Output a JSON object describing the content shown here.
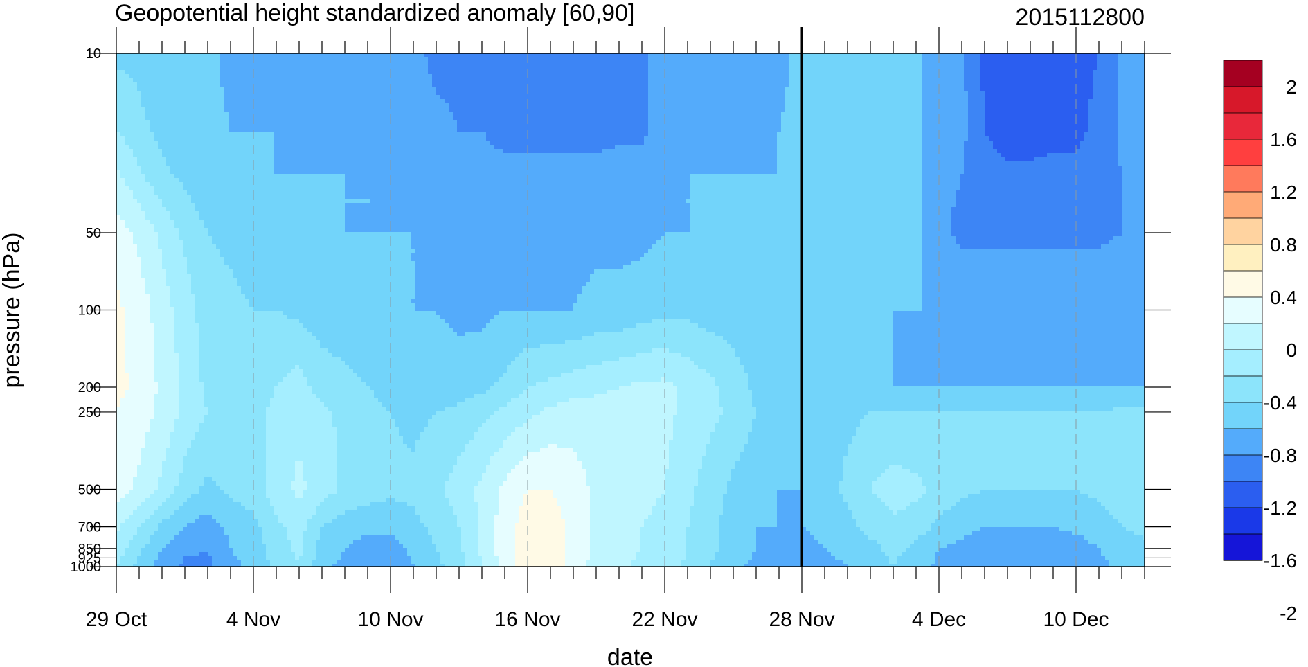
{
  "chart_data": {
    "type": "heatmap",
    "subtype": "filled-contour",
    "title": "Geopotential height standardized anomaly [60,90]",
    "right_label": "2015112800",
    "xlabel": "date",
    "ylabel": "pressure (hPa)",
    "x_ticks": [
      {
        "day": 0,
        "label": "29 Oct"
      },
      {
        "day": 6,
        "label": "4 Nov"
      },
      {
        "day": 12,
        "label": "10 Nov"
      },
      {
        "day": 18,
        "label": "16 Nov"
      },
      {
        "day": 24,
        "label": "22 Nov"
      },
      {
        "day": 30,
        "label": "28 Nov"
      },
      {
        "day": 36,
        "label": "4 Dec"
      },
      {
        "day": 42,
        "label": "10 Dec"
      }
    ],
    "x_range_days": [
      0,
      45
    ],
    "vertical_marker": "28 Nov",
    "y_ticks": [
      {
        "p": 10,
        "label": "10"
      },
      {
        "p": 50,
        "label": "50"
      },
      {
        "p": 100,
        "label": "100"
      },
      {
        "p": 200,
        "label": "200"
      },
      {
        "p": 250,
        "label": "250"
      },
      {
        "p": 500,
        "label": "500"
      },
      {
        "p": 700,
        "label": "700"
      },
      {
        "p": 850,
        "label": "850"
      },
      {
        "p": 925,
        "label": "925"
      },
      {
        "p": 1000,
        "label": "1000"
      }
    ],
    "y_range": [
      1000,
      10
    ],
    "y_scale": "log",
    "colorbar": {
      "labels": [
        "2",
        "1.6",
        "1.2",
        "0.8",
        "0.4",
        "0",
        "-0.4",
        "-0.8",
        "-1.2",
        "-1.6",
        "-2"
      ],
      "colors": [
        "#a50021",
        "#d7182a",
        "#e8283a",
        "#ff3f3f",
        "#ff7a5c",
        "#ffaa77",
        "#ffd3a0",
        "#fff0c0",
        "#fffae6",
        "#e6fdff",
        "#c0f6ff",
        "#a5eeff",
        "#8ce4fb",
        "#72d4fa",
        "#54abfb",
        "#3d85f5",
        "#2b5ef0",
        "#1a39e8",
        "#1515d8"
      ]
    },
    "levels": [
      {
        "p": 10,
        "values": [
          -0.45,
          -0.45,
          -0.55,
          -0.55,
          -0.55,
          -0.65,
          -0.65,
          -0.65,
          -0.65,
          -0.65,
          -0.65,
          -0.65,
          -0.65,
          -0.75,
          -0.85,
          -0.85,
          -0.9,
          -0.9,
          -0.9,
          -0.9,
          -0.85,
          -0.85,
          -0.85,
          -0.85,
          -0.7,
          -0.65,
          -0.65,
          -0.65,
          -0.65,
          -0.65,
          -0.55,
          -0.55,
          -0.55,
          -0.55,
          -0.55,
          -0.55,
          -0.7,
          -0.75,
          -1.05,
          -1.1,
          -1.1,
          -1.1,
          -1.05,
          -1.0,
          -0.75,
          -0.7
        ]
      },
      {
        "p": 20,
        "values": [
          -0.2,
          -0.35,
          -0.45,
          -0.55,
          -0.55,
          -0.6,
          -0.6,
          -0.6,
          -0.6,
          -0.6,
          -0.65,
          -0.65,
          -0.65,
          -0.7,
          -0.75,
          -0.8,
          -0.8,
          -0.85,
          -0.85,
          -0.85,
          -0.85,
          -0.85,
          -0.85,
          -0.85,
          -0.7,
          -0.6,
          -0.6,
          -0.6,
          -0.6,
          -0.6,
          -0.55,
          -0.5,
          -0.5,
          -0.5,
          -0.5,
          -0.55,
          -0.7,
          -0.75,
          -1.0,
          -1.1,
          -1.1,
          -1.05,
          -1.05,
          -0.95,
          -0.75,
          -0.7
        ]
      },
      {
        "p": 30,
        "values": [
          0.05,
          -0.15,
          -0.35,
          -0.45,
          -0.55,
          -0.55,
          -0.55,
          -0.6,
          -0.6,
          -0.6,
          -0.6,
          -0.6,
          -0.65,
          -0.65,
          -0.7,
          -0.75,
          -0.75,
          -0.75,
          -0.75,
          -0.75,
          -0.75,
          -0.75,
          -0.7,
          -0.7,
          -0.65,
          -0.6,
          -0.6,
          -0.6,
          -0.6,
          -0.6,
          -0.55,
          -0.5,
          -0.45,
          -0.45,
          -0.45,
          -0.55,
          -0.75,
          -0.8,
          -0.9,
          -0.95,
          -0.95,
          -0.95,
          -0.95,
          -0.9,
          -0.8,
          -0.75
        ]
      },
      {
        "p": 50,
        "values": [
          0.3,
          0.15,
          -0.05,
          -0.25,
          -0.4,
          -0.45,
          -0.5,
          -0.5,
          -0.55,
          -0.55,
          -0.6,
          -0.6,
          -0.6,
          -0.6,
          -0.65,
          -0.65,
          -0.7,
          -0.7,
          -0.7,
          -0.7,
          -0.65,
          -0.65,
          -0.65,
          -0.65,
          -0.6,
          -0.6,
          -0.55,
          -0.55,
          -0.55,
          -0.55,
          -0.55,
          -0.5,
          -0.45,
          -0.45,
          -0.5,
          -0.55,
          -0.75,
          -0.85,
          -0.85,
          -0.85,
          -0.85,
          -0.85,
          -0.85,
          -0.85,
          -0.8,
          -0.75
        ]
      },
      {
        "p": 100,
        "values": [
          0.45,
          0.3,
          0.1,
          -0.1,
          -0.3,
          -0.35,
          -0.4,
          -0.4,
          -0.45,
          -0.5,
          -0.5,
          -0.55,
          -0.55,
          -0.6,
          -0.6,
          -0.65,
          -0.65,
          -0.6,
          -0.6,
          -0.6,
          -0.6,
          -0.55,
          -0.55,
          -0.5,
          -0.45,
          -0.45,
          -0.5,
          -0.5,
          -0.5,
          -0.55,
          -0.55,
          -0.55,
          -0.55,
          -0.55,
          -0.6,
          -0.6,
          -0.6,
          -0.6,
          -0.6,
          -0.6,
          -0.6,
          -0.6,
          -0.6,
          -0.6,
          -0.6,
          -0.6
        ]
      },
      {
        "p": 200,
        "values": [
          0.45,
          0.35,
          0.15,
          -0.05,
          -0.25,
          -0.3,
          -0.3,
          -0.2,
          -0.1,
          -0.3,
          -0.35,
          -0.4,
          -0.45,
          -0.5,
          -0.5,
          -0.5,
          -0.45,
          -0.35,
          -0.2,
          -0.15,
          -0.1,
          -0.05,
          0.0,
          0.05,
          0.05,
          -0.05,
          -0.15,
          -0.3,
          -0.45,
          -0.5,
          -0.55,
          -0.55,
          -0.6,
          -0.6,
          -0.6,
          -0.6,
          -0.6,
          -0.6,
          -0.6,
          -0.6,
          -0.6,
          -0.6,
          -0.6,
          -0.6,
          -0.6,
          -0.6
        ]
      },
      {
        "p": 250,
        "values": [
          0.4,
          0.3,
          0.15,
          -0.05,
          -0.2,
          -0.25,
          -0.25,
          -0.15,
          -0.05,
          -0.15,
          -0.25,
          -0.35,
          -0.4,
          -0.45,
          -0.4,
          -0.35,
          -0.25,
          -0.15,
          -0.05,
          0.05,
          0.1,
          0.1,
          0.1,
          0.1,
          0.05,
          -0.05,
          -0.15,
          -0.25,
          -0.4,
          -0.5,
          -0.5,
          -0.5,
          -0.45,
          -0.4,
          -0.4,
          -0.4,
          -0.4,
          -0.4,
          -0.4,
          -0.4,
          -0.4,
          -0.4,
          -0.4,
          -0.4,
          -0.35,
          -0.35
        ]
      },
      {
        "p": 500,
        "values": [
          0.3,
          0.15,
          -0.05,
          -0.3,
          -0.45,
          -0.35,
          -0.3,
          -0.1,
          0.05,
          -0.1,
          -0.25,
          -0.3,
          -0.35,
          -0.35,
          -0.25,
          -0.1,
          0.05,
          0.25,
          0.4,
          0.4,
          0.3,
          0.15,
          0.1,
          0.05,
          0.0,
          -0.15,
          -0.3,
          -0.45,
          -0.55,
          -0.6,
          -0.6,
          -0.5,
          -0.35,
          -0.2,
          -0.1,
          -0.15,
          -0.25,
          -0.35,
          -0.4,
          -0.4,
          -0.4,
          -0.4,
          -0.4,
          -0.35,
          -0.25,
          -0.3
        ]
      },
      {
        "p": 700,
        "values": [
          0.05,
          -0.2,
          -0.45,
          -0.6,
          -0.7,
          -0.55,
          -0.45,
          -0.25,
          -0.1,
          -0.4,
          -0.5,
          -0.55,
          -0.55,
          -0.45,
          -0.35,
          -0.2,
          0.05,
          0.3,
          0.5,
          0.5,
          0.35,
          0.15,
          0.05,
          0.0,
          -0.05,
          -0.2,
          -0.35,
          -0.5,
          -0.6,
          -0.6,
          -0.6,
          -0.55,
          -0.45,
          -0.35,
          -0.25,
          -0.3,
          -0.45,
          -0.55,
          -0.6,
          -0.6,
          -0.6,
          -0.6,
          -0.55,
          -0.5,
          -0.4,
          -0.35
        ]
      },
      {
        "p": 850,
        "values": [
          -0.1,
          -0.35,
          -0.6,
          -0.75,
          -0.8,
          -0.6,
          -0.5,
          -0.3,
          -0.15,
          -0.5,
          -0.6,
          -0.7,
          -0.7,
          -0.55,
          -0.4,
          -0.25,
          0.05,
          0.3,
          0.5,
          0.5,
          0.35,
          0.15,
          0.05,
          0.0,
          -0.05,
          -0.2,
          -0.35,
          -0.5,
          -0.6,
          -0.6,
          -0.65,
          -0.6,
          -0.55,
          -0.45,
          -0.35,
          -0.45,
          -0.6,
          -0.65,
          -0.7,
          -0.7,
          -0.75,
          -0.75,
          -0.7,
          -0.6,
          -0.5,
          -0.45
        ]
      },
      {
        "p": 1000,
        "values": [
          -0.2,
          -0.45,
          -0.7,
          -0.85,
          -0.85,
          -0.65,
          -0.55,
          -0.35,
          -0.2,
          -0.55,
          -0.65,
          -0.75,
          -0.75,
          -0.6,
          -0.45,
          -0.3,
          0.0,
          0.3,
          0.5,
          0.5,
          0.35,
          0.1,
          0.05,
          -0.05,
          -0.1,
          -0.25,
          -0.4,
          -0.55,
          -0.65,
          -0.7,
          -0.7,
          -0.65,
          -0.6,
          -0.5,
          -0.4,
          -0.5,
          -0.65,
          -0.7,
          -0.75,
          -0.8,
          -0.8,
          -0.8,
          -0.75,
          -0.65,
          -0.55,
          -0.5
        ]
      }
    ]
  }
}
